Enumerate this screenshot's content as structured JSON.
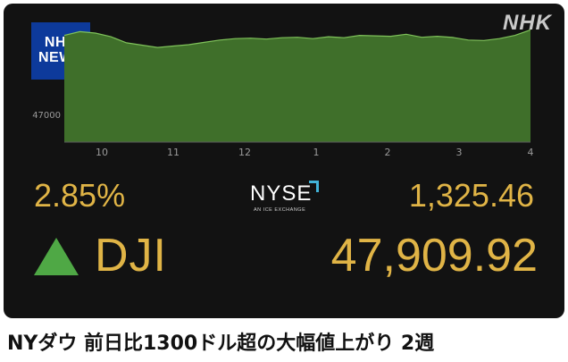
{
  "broadcaster_logo": "NHK",
  "news_badge": {
    "line1": "NHK",
    "line2": "NEWS"
  },
  "chart_data": {
    "type": "area",
    "title": "",
    "xlabel": "",
    "ylabel": "",
    "x_ticks": [
      "10",
      "11",
      "12",
      "1",
      "2",
      "3",
      "4"
    ],
    "y_ticks": [
      47000
    ],
    "ylim": [
      46700,
      48000
    ],
    "grid": false,
    "fill_color": "#3f6f2a",
    "line_color": "#7fc25a",
    "series": [
      {
        "x": [
          0,
          0.2,
          0.4,
          0.6,
          0.8,
          1.0,
          1.2,
          1.4,
          1.6,
          1.8,
          2.0,
          2.2,
          2.4,
          2.6,
          2.8,
          3.0,
          3.2,
          3.4,
          3.6,
          3.8,
          4.0,
          4.2,
          4.4,
          4.6,
          4.8,
          5.0,
          5.2,
          5.4,
          5.6,
          5.8,
          6.0
        ],
        "values": [
          47850,
          47890,
          47875,
          47835,
          47770,
          47745,
          47720,
          47735,
          47750,
          47775,
          47800,
          47815,
          47820,
          47810,
          47825,
          47830,
          47815,
          47835,
          47825,
          47850,
          47845,
          47840,
          47862,
          47830,
          47840,
          47828,
          47800,
          47795,
          47815,
          47850,
          47909.92
        ]
      }
    ]
  },
  "quote": {
    "percent_change": "2.85%",
    "point_change": "1,325.46",
    "symbol": "DJI",
    "value": "47,909.92",
    "direction": "up",
    "up_color": "#4fa845",
    "text_color": "#e0b446"
  },
  "exchange_logo": {
    "word": "NYSE",
    "subtitle": "AN ICE EXCHANGE"
  },
  "headline": "NYダウ 前日比1300ドル超の大幅値上がり 2週"
}
